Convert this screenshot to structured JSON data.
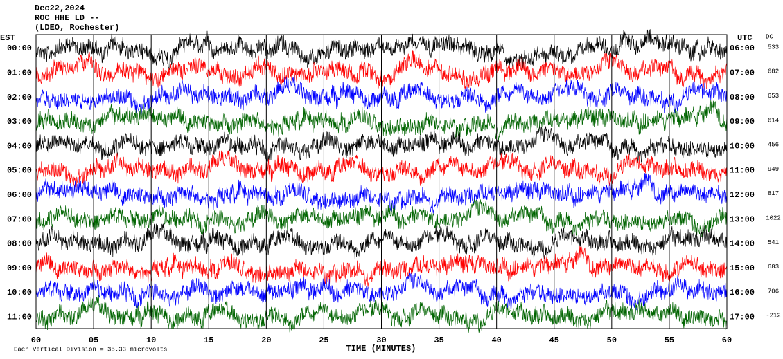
{
  "chart_data": {
    "type": "helicorder",
    "title_lines": [
      "Dec22,2024",
      "ROC HHE LD --",
      "(LDEO, Rochester)"
    ],
    "left_header": "EST",
    "right_header": "UTC",
    "dc_header": "DC",
    "xlabel": "TIME (MINUTES)",
    "footnote": "Each Vertical Division = 35.33 microvolts",
    "xlim": [
      0,
      60
    ],
    "xticks": [
      {
        "value": 0,
        "label": "00"
      },
      {
        "value": 5,
        "label": "05"
      },
      10,
      15,
      20,
      25,
      30,
      35,
      40,
      45,
      50,
      55,
      60
    ],
    "trace_colors": [
      "#000000",
      "#ff0000",
      "#0000ff",
      "#006400"
    ],
    "rows": [
      {
        "est": "00:00",
        "utc": "06:00",
        "dc": 533
      },
      {
        "est": "01:00",
        "utc": "07:00",
        "dc": 682
      },
      {
        "est": "02:00",
        "utc": "08:00",
        "dc": 653
      },
      {
        "est": "03:00",
        "utc": "09:00",
        "dc": 614
      },
      {
        "est": "04:00",
        "utc": "10:00",
        "dc": 456
      },
      {
        "est": "05:00",
        "utc": "11:00",
        "dc": 949
      },
      {
        "est": "06:00",
        "utc": "12:00",
        "dc": 817
      },
      {
        "est": "07:00",
        "utc": "13:00",
        "dc": 1022
      },
      {
        "est": "08:00",
        "utc": "14:00",
        "dc": 541
      },
      {
        "est": "09:00",
        "utc": "15:00",
        "dc": 683
      },
      {
        "est": "10:00",
        "utc": "16:00",
        "dc": 706
      },
      {
        "est": "11:00",
        "utc": "17:00",
        "dc": -212
      }
    ]
  }
}
